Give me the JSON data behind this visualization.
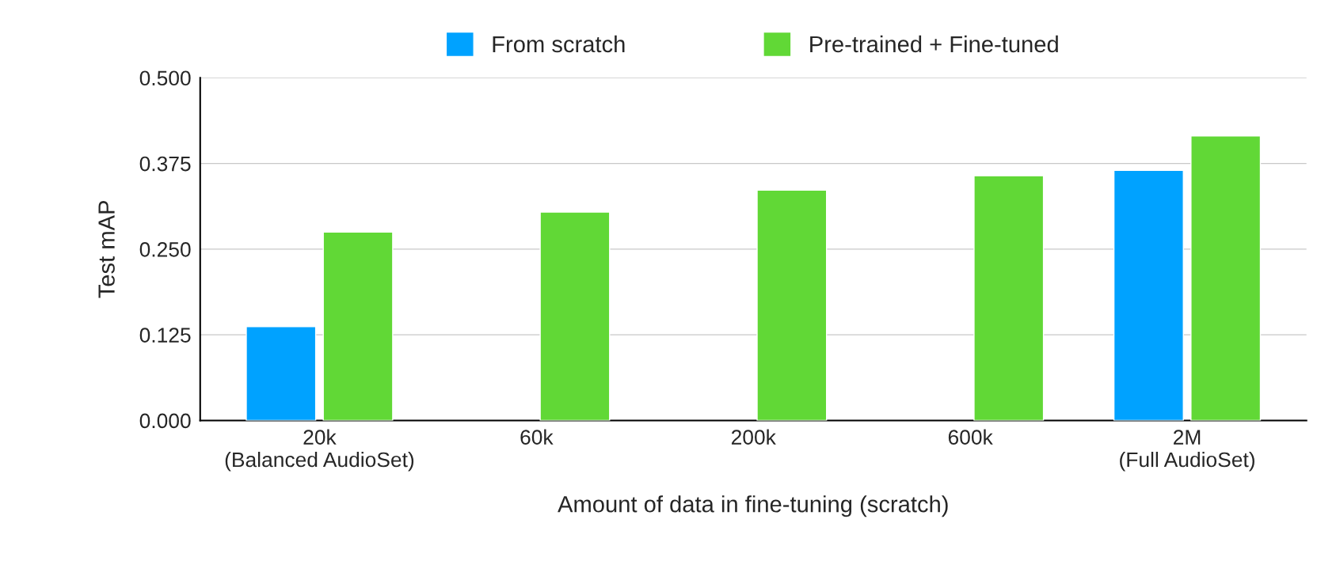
{
  "chart_data": {
    "type": "bar",
    "xlabel": "Amount of data in fine-tuning (scratch)",
    "ylabel": "Test mAP",
    "categories": [
      "20k\n(Balanced AudioSet)",
      "60k",
      "200k",
      "600k",
      "2M\n(Full AudioSet)"
    ],
    "series": [
      {
        "name": "From scratch",
        "color": "#00a2ff",
        "values": [
          0.137,
          null,
          null,
          null,
          0.365
        ]
      },
      {
        "name": "Pre-trained + Fine-tuned",
        "color": "#61d836",
        "values": [
          0.275,
          0.304,
          0.336,
          0.357,
          0.415
        ]
      }
    ],
    "ylim": [
      0,
      0.5
    ],
    "yticks": [
      {
        "value": 0,
        "label": "0.000"
      },
      {
        "value": 0.125,
        "label": "0.125"
      },
      {
        "value": 0.25,
        "label": "0.250"
      },
      {
        "value": 0.375,
        "label": "0.375"
      },
      {
        "value": 0.5,
        "label": "0.500"
      }
    ],
    "grid": "y",
    "legend": "top"
  }
}
